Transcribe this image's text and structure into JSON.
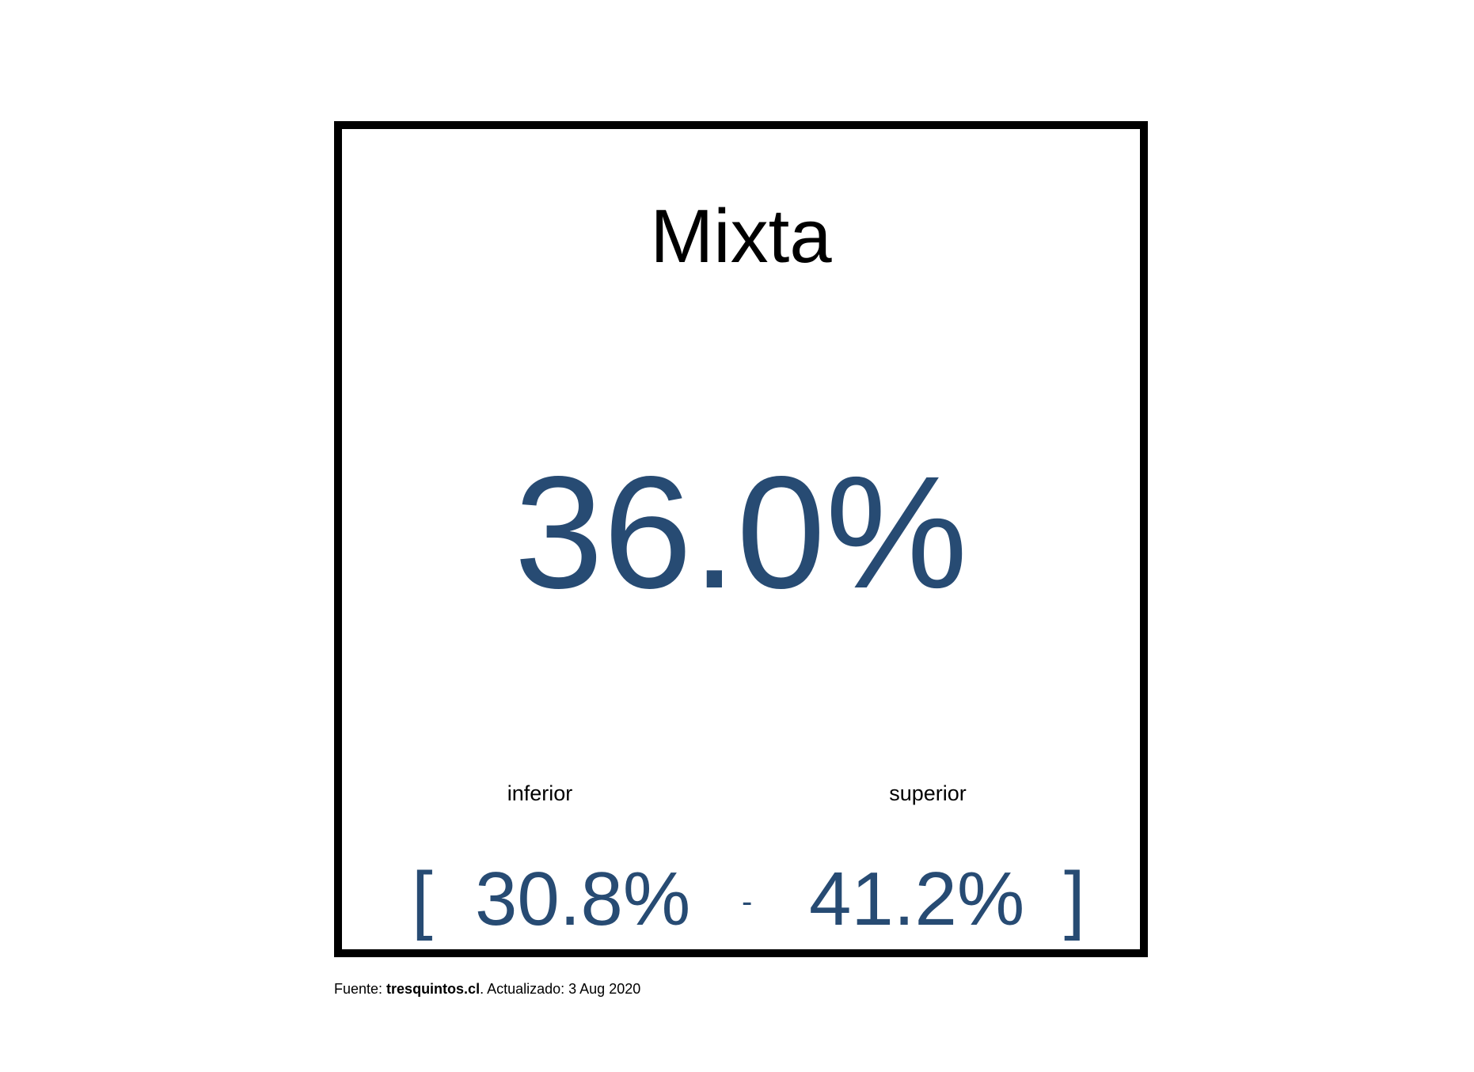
{
  "card": {
    "title": "Mixta",
    "value": "36.0%",
    "lower_label": "inferior",
    "upper_label": "superior",
    "bracket_open": "[",
    "lower_value": "30.8%",
    "separator": "-",
    "upper_value": "41.2%",
    "bracket_close": "]"
  },
  "footer": {
    "source_prefix": "Fuente: ",
    "source_name": "tresquintos.cl",
    "updated_text": ". Actualizado: 3 Aug 2020"
  },
  "colors": {
    "value_color": "#274b73",
    "border_color": "#000000"
  }
}
